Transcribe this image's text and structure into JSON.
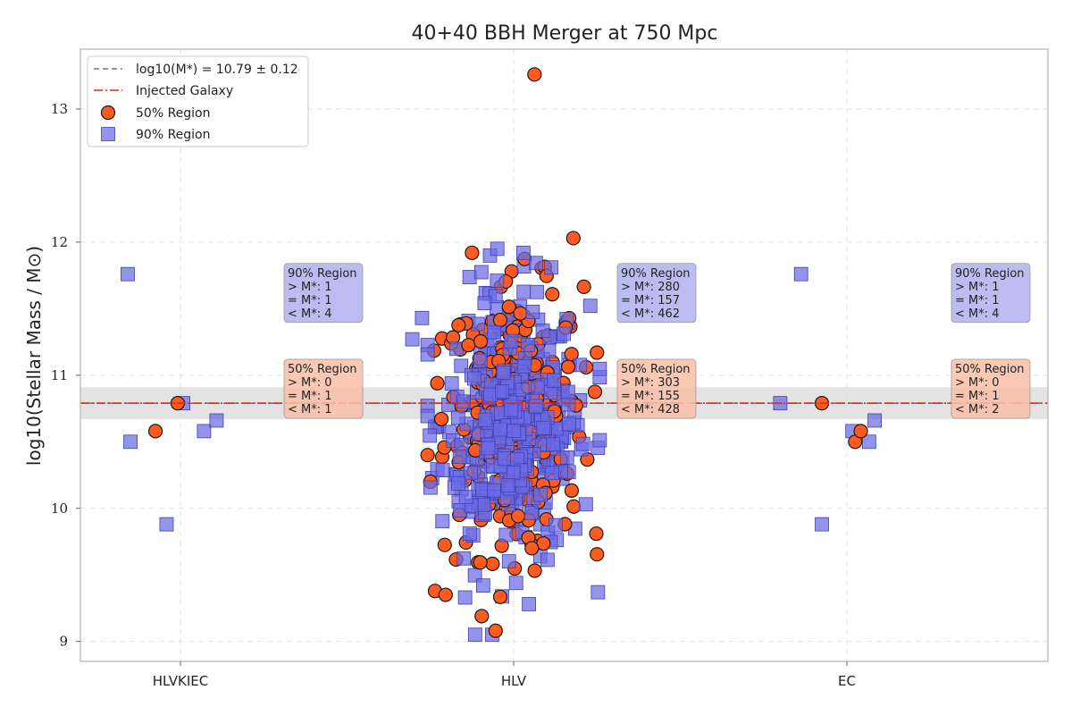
{
  "chart_data": {
    "type": "scatter",
    "title": "40+40 BBH Merger at 750 Mpc",
    "ylabel": "log10(Stellar Mass / M⊙)",
    "xlabel": "",
    "categories": [
      "HLVKIEC",
      "HLV",
      "EC"
    ],
    "ylim": [
      8.85,
      13.45
    ],
    "yticks": [
      9,
      10,
      11,
      12,
      13
    ],
    "grid": true,
    "legend_position": "top-left",
    "legend": [
      {
        "label": "log10(M*) = 10.79 ± 0.12",
        "style": "dashed-line",
        "color": "#555555"
      },
      {
        "label": "Injected Galaxy",
        "style": "dashdot-line",
        "color": "#e8231b"
      },
      {
        "label": "50% Region",
        "style": "circle",
        "color": "#ff5a1f"
      },
      {
        "label": "90% Region",
        "style": "square",
        "color": "#6b6be6"
      }
    ],
    "reference_line": {
      "value": 10.79,
      "band": [
        10.67,
        10.91
      ],
      "label": "log10(M*) = 10.79 ± 0.12"
    },
    "injected_line": {
      "value": 10.79,
      "label": "Injected Galaxy"
    },
    "series": [
      {
        "name": "90% Region",
        "marker": "square",
        "color": "#6b6be6",
        "points": {
          "HLVKIEC": [
            [
              -0.38,
              11.76
            ],
            [
              -0.36,
              10.5
            ],
            [
              -0.1,
              9.88
            ],
            [
              0.02,
              10.79
            ],
            [
              0.17,
              10.58
            ],
            [
              0.26,
              10.66
            ]
          ],
          "HLV": {
            "count": 899,
            "above": 280,
            "equal": 157,
            "below": 462,
            "spread": 0.6,
            "outliers": [
              [
                -0.73,
                11.27
              ],
              [
                -0.66,
                11.43
              ],
              [
                -0.35,
                9.33
              ],
              [
                -0.22,
                9.42
              ],
              [
                0.07,
                11.92
              ],
              [
                0.27,
                11.81
              ],
              [
                0.52,
                10.03
              ],
              [
                0.11,
                9.28
              ]
            ]
          },
          "EC": [
            [
              -0.33,
              11.76
            ],
            [
              -0.48,
              10.79
            ],
            [
              -0.18,
              9.88
            ],
            [
              0.04,
              10.58
            ],
            [
              0.16,
              10.5
            ],
            [
              0.2,
              10.66
            ]
          ]
        }
      },
      {
        "name": "50% Region",
        "marker": "circle",
        "color": "#ff5a1f",
        "points": {
          "HLVKIEC": [
            [
              -0.02,
              10.79
            ],
            [
              -0.18,
              10.58
            ]
          ],
          "HLV": {
            "count": 886,
            "above": 303,
            "equal": 155,
            "below": 428,
            "spread": 0.55,
            "outliers": [
              [
                0.15,
                13.26
              ],
              [
                0.43,
                12.03
              ],
              [
                0.6,
                11.17
              ],
              [
                -0.3,
                11.92
              ],
              [
                -0.55,
                10.94
              ],
              [
                -0.62,
                10.4
              ],
              [
                -0.49,
                9.35
              ],
              [
                -0.23,
                9.19
              ],
              [
                -0.13,
                9.08
              ],
              [
                0.13,
                9.7
              ]
            ]
          },
          "EC": [
            [
              -0.18,
              10.79
            ],
            [
              0.06,
              10.5
            ],
            [
              0.1,
              10.58
            ]
          ]
        }
      }
    ],
    "annotations": [
      {
        "category": "HLVKIEC",
        "region": "90% Region",
        "color": "#b0b0ee",
        "lines": [
          "90% Region",
          "> M*: 1",
          "= M*: 1",
          "< M*: 4"
        ],
        "y_top": 11.84
      },
      {
        "category": "HLVKIEC",
        "region": "50% Region",
        "color": "#f8c0a8",
        "lines": [
          "50% Region",
          "> M*: 0",
          "= M*: 1",
          "< M*: 1"
        ],
        "y_top": 11.12
      },
      {
        "category": "HLV",
        "region": "90% Region",
        "color": "#b0b0ee",
        "lines": [
          "90% Region",
          "> M*: 280",
          "= M*: 157",
          "< M*: 462"
        ],
        "y_top": 11.84
      },
      {
        "category": "HLV",
        "region": "50% Region",
        "color": "#f8c0a8",
        "lines": [
          "50% Region",
          "> M*: 303",
          "= M*: 155",
          "< M*: 428"
        ],
        "y_top": 11.12
      },
      {
        "category": "EC",
        "region": "90% Region",
        "color": "#b0b0ee",
        "lines": [
          "90% Region",
          "> M*: 1",
          "= M*: 1",
          "< M*: 4"
        ],
        "y_top": 11.84
      },
      {
        "category": "EC",
        "region": "50% Region",
        "color": "#f8c0a8",
        "lines": [
          "50% Region",
          "> M*: 0",
          "= M*: 1",
          "< M*: 2"
        ],
        "y_top": 11.12
      }
    ]
  }
}
